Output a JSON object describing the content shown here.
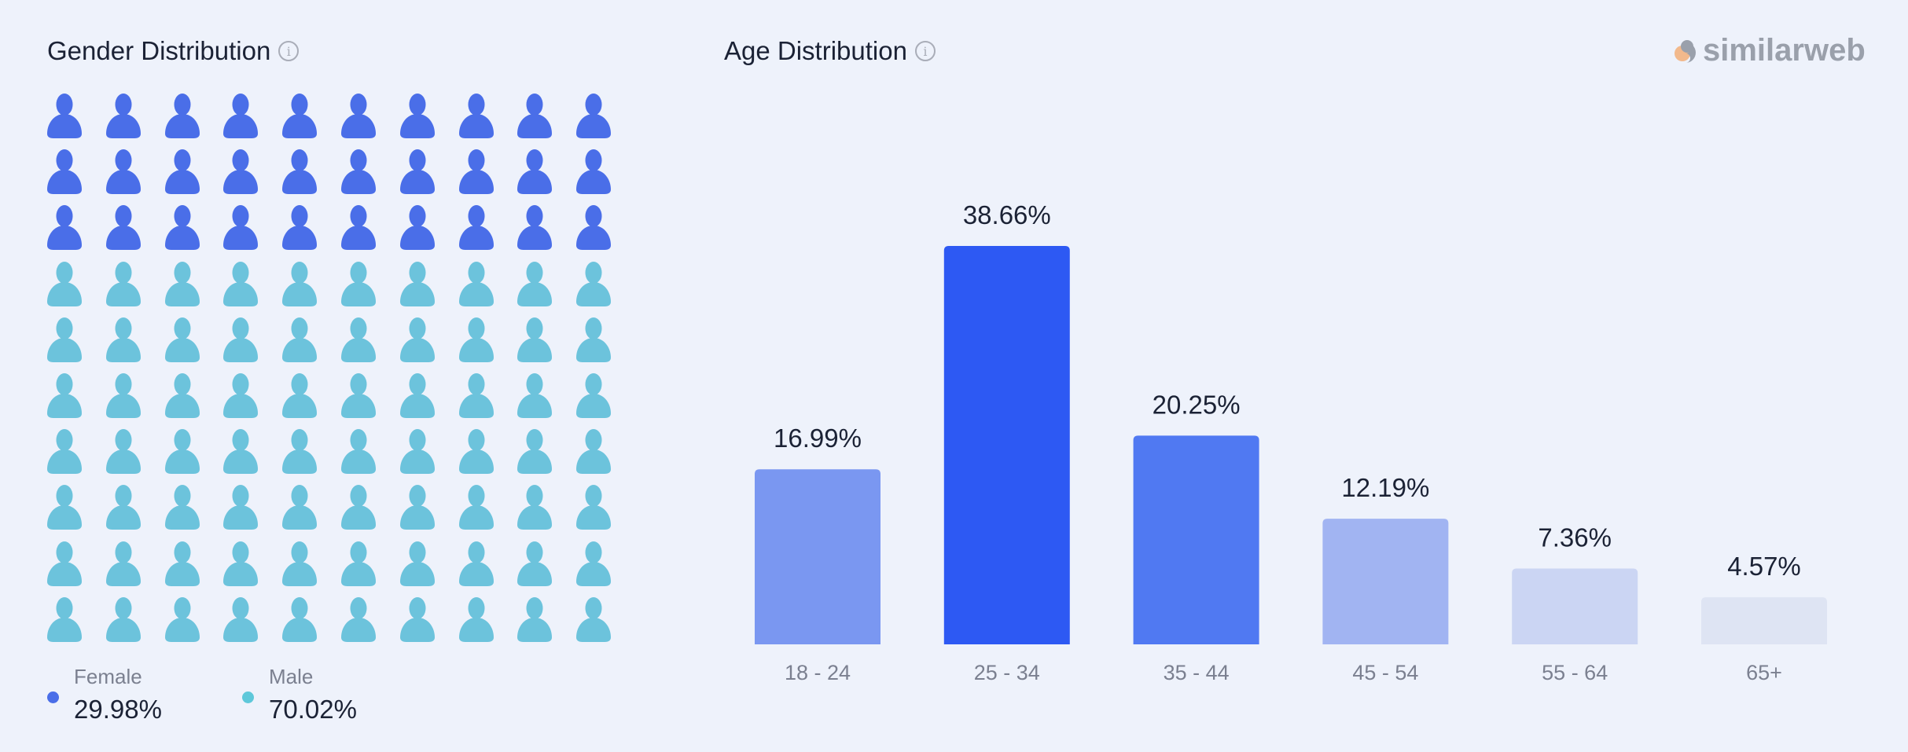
{
  "gender": {
    "title": "Gender Distribution",
    "info_icon": "info-icon",
    "female": {
      "label": "Female",
      "value": "29.98%",
      "percent": 29.98,
      "color": "#4a6ee8"
    },
    "male": {
      "label": "Male",
      "value": "70.02%",
      "percent": 70.02,
      "color": "#6cc3dc"
    }
  },
  "age": {
    "title": "Age Distribution",
    "info_icon": "info-icon"
  },
  "logo": {
    "text": "similarweb"
  },
  "chart_data": [
    {
      "type": "pictogram",
      "title": "Gender Distribution",
      "categories": [
        "Female",
        "Male"
      ],
      "values": [
        29.98,
        70.02
      ],
      "units": "%",
      "grid": "10x10 person icons"
    },
    {
      "type": "bar",
      "title": "Age Distribution",
      "categories": [
        "18 - 24",
        "25 - 34",
        "35 - 44",
        "45 - 54",
        "55 - 64",
        "65+"
      ],
      "values": [
        16.99,
        38.66,
        20.25,
        12.19,
        7.36,
        4.57
      ],
      "labels": [
        "16.99%",
        "38.66%",
        "20.25%",
        "12.19%",
        "7.36%",
        "4.57%"
      ],
      "colors": [
        "#7a97f1",
        "#2d59f3",
        "#5079f2",
        "#a1b4f2",
        "#cbd5f3",
        "#dee4f3"
      ],
      "xlabel": "",
      "ylabel": "",
      "ylim": [
        0,
        38.66
      ],
      "grid": false,
      "legend": "none"
    }
  ]
}
